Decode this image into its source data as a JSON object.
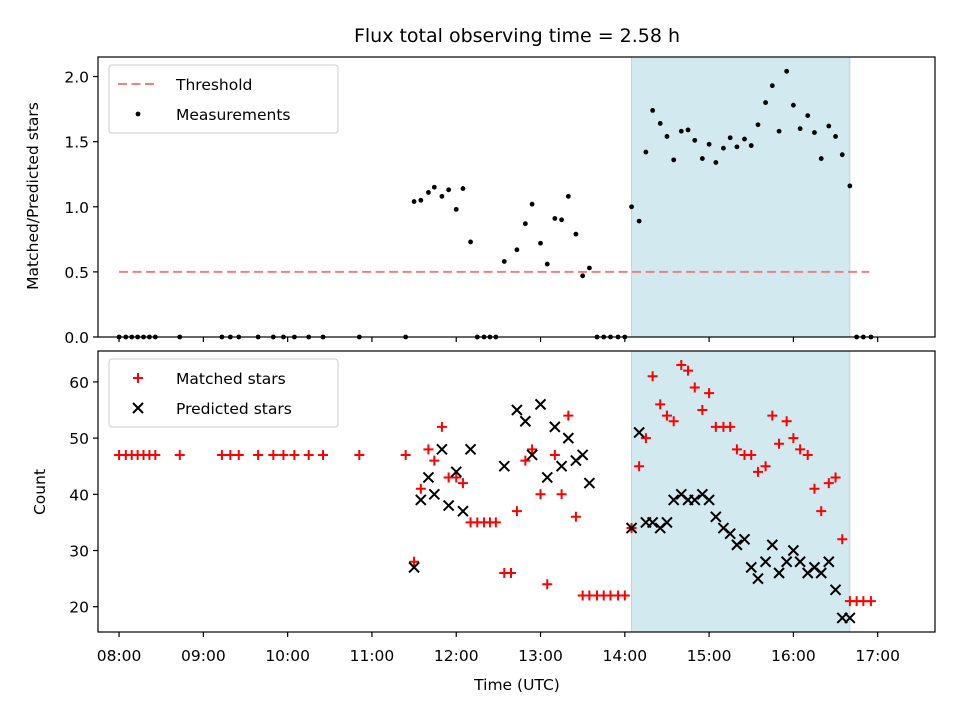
{
  "chart_data": [
    {
      "type": "scatter",
      "title": "Flux total observing time = 2.58 h",
      "xlabel": "",
      "ylabel": "Matched/Predicted stars",
      "xlim": [
        7.75,
        17.68
      ],
      "ylim": [
        0,
        2.15
      ],
      "yticks": [
        0.0,
        0.5,
        1.0,
        1.5,
        2.0
      ],
      "ytick_labels": [
        "0.0",
        "0.5",
        "1.0",
        "1.5",
        "2.0"
      ],
      "xticks": [
        8,
        9,
        10,
        11,
        12,
        13,
        14,
        15,
        16,
        17
      ],
      "shaded_region": {
        "x_start": 14.08,
        "x_end": 16.67,
        "color": "#a6d3e0"
      },
      "legend_position": "upper left",
      "threshold": {
        "name": "Threshold",
        "y": 0.5,
        "x_start": 8.0,
        "x_end": 16.9,
        "color": "#f08080"
      },
      "series": [
        {
          "name": "Measurements",
          "marker": "dot",
          "color": "#000000",
          "x": [
            8.0,
            8.08,
            8.15,
            8.22,
            8.29,
            8.36,
            8.43,
            8.72,
            9.22,
            9.32,
            9.42,
            9.65,
            9.83,
            9.95,
            10.08,
            10.25,
            10.42,
            10.85,
            11.4,
            11.5,
            11.58,
            11.67,
            11.74,
            11.83,
            11.91,
            12.0,
            12.08,
            12.17,
            12.25,
            12.33,
            12.4,
            12.47,
            12.57,
            12.72,
            12.82,
            12.9,
            13.0,
            13.08,
            13.17,
            13.25,
            13.33,
            13.42,
            13.5,
            13.58,
            13.67,
            13.75,
            13.83,
            13.92,
            14.0,
            14.08,
            14.17,
            14.25,
            14.33,
            14.42,
            14.5,
            14.58,
            14.67,
            14.75,
            14.83,
            14.92,
            15.0,
            15.08,
            15.17,
            15.25,
            15.33,
            15.42,
            15.5,
            15.58,
            15.67,
            15.75,
            15.83,
            15.92,
            16.0,
            16.08,
            16.17,
            16.25,
            16.33,
            16.42,
            16.5,
            16.58,
            16.67,
            16.75,
            16.83,
            16.92
          ],
          "y": [
            0,
            0,
            0,
            0,
            0,
            0,
            0,
            0,
            0,
            0,
            0,
            0,
            0,
            0,
            0,
            0,
            0,
            0,
            0,
            1.04,
            1.05,
            1.11,
            1.15,
            1.08,
            1.13,
            0.98,
            1.14,
            0.73,
            0,
            0,
            0,
            0,
            0.58,
            0.67,
            0.87,
            1.02,
            0.72,
            0.56,
            0.91,
            0.9,
            1.08,
            0.79,
            0.47,
            0.53,
            0,
            0,
            0,
            0,
            0,
            1.0,
            0.89,
            1.42,
            1.74,
            1.64,
            1.54,
            1.36,
            1.58,
            1.59,
            1.51,
            1.37,
            1.48,
            1.34,
            1.45,
            1.53,
            1.46,
            1.52,
            1.47,
            1.63,
            1.8,
            1.93,
            1.58,
            2.04,
            1.78,
            1.6,
            1.7,
            1.57,
            1.37,
            1.62,
            1.54,
            1.4,
            1.16,
            0,
            0,
            0
          ]
        }
      ]
    },
    {
      "type": "scatter",
      "xlabel": "Time (UTC)",
      "ylabel": "Count",
      "xlim": [
        7.75,
        17.68
      ],
      "ylim": [
        15.5,
        65.5
      ],
      "yticks": [
        20,
        30,
        40,
        50,
        60
      ],
      "ytick_labels": [
        "20",
        "30",
        "40",
        "50",
        "60"
      ],
      "xticks": [
        8,
        9,
        10,
        11,
        12,
        13,
        14,
        15,
        16,
        17
      ],
      "xtick_labels": [
        "08:00",
        "09:00",
        "10:00",
        "11:00",
        "12:00",
        "13:00",
        "14:00",
        "15:00",
        "16:00",
        "17:00"
      ],
      "shaded_region": {
        "x_start": 14.08,
        "x_end": 16.67,
        "color": "#a6d3e0"
      },
      "legend_position": "upper left",
      "series": [
        {
          "name": "Matched stars",
          "marker": "plus",
          "color": "#ff0000",
          "x": [
            8.0,
            8.08,
            8.15,
            8.22,
            8.29,
            8.36,
            8.43,
            8.72,
            9.22,
            9.32,
            9.42,
            9.65,
            9.83,
            9.95,
            10.08,
            10.25,
            10.42,
            10.85,
            11.4,
            11.5,
            11.58,
            11.67,
            11.74,
            11.83,
            11.91,
            12.0,
            12.08,
            12.17,
            12.25,
            12.33,
            12.4,
            12.47,
            12.57,
            12.65,
            12.72,
            12.82,
            12.9,
            13.0,
            13.08,
            13.17,
            13.25,
            13.33,
            13.42,
            13.5,
            13.58,
            13.67,
            13.75,
            13.83,
            13.92,
            14.0,
            14.08,
            14.17,
            14.25,
            14.33,
            14.42,
            14.5,
            14.58,
            14.67,
            14.75,
            14.83,
            14.92,
            15.0,
            15.08,
            15.17,
            15.25,
            15.33,
            15.42,
            15.5,
            15.58,
            15.67,
            15.75,
            15.83,
            15.92,
            16.0,
            16.08,
            16.17,
            16.25,
            16.33,
            16.42,
            16.5,
            16.58,
            16.67,
            16.75,
            16.83,
            16.92
          ],
          "y": [
            47,
            47,
            47,
            47,
            47,
            47,
            47,
            47,
            47,
            47,
            47,
            47,
            47,
            47,
            47,
            47,
            47,
            47,
            47,
            28,
            41,
            48,
            46,
            52,
            43,
            43,
            42,
            35,
            35,
            35,
            35,
            35,
            26,
            26,
            37,
            46,
            48,
            40,
            24,
            47,
            40,
            54,
            36,
            22,
            22,
            22,
            22,
            22,
            22,
            22,
            34,
            45,
            50,
            61,
            56,
            54,
            53,
            63,
            62,
            59,
            55,
            58,
            52,
            52,
            52,
            48,
            47,
            47,
            44,
            45,
            54,
            49,
            53,
            50,
            48,
            47,
            41,
            37,
            42,
            43,
            32,
            21,
            21,
            21,
            21
          ]
        },
        {
          "name": "Predicted stars",
          "marker": "x",
          "color": "#000000",
          "x": [
            11.5,
            11.58,
            11.67,
            11.74,
            11.83,
            11.91,
            12.0,
            12.08,
            12.17,
            12.57,
            12.72,
            12.82,
            12.9,
            13.0,
            13.08,
            13.17,
            13.25,
            13.33,
            13.42,
            13.5,
            13.58,
            14.08,
            14.17,
            14.25,
            14.33,
            14.42,
            14.5,
            14.58,
            14.67,
            14.75,
            14.83,
            14.92,
            15.0,
            15.08,
            15.17,
            15.25,
            15.33,
            15.42,
            15.5,
            15.58,
            15.67,
            15.75,
            15.83,
            15.92,
            16.0,
            16.08,
            16.17,
            16.25,
            16.33,
            16.42,
            16.5,
            16.58,
            16.67
          ],
          "y": [
            27,
            39,
            43,
            40,
            48,
            38,
            44,
            37,
            48,
            45,
            55,
            53,
            47,
            56,
            43,
            52,
            45,
            50,
            46,
            47,
            42,
            34,
            51,
            35,
            35,
            34,
            35,
            39,
            40,
            39,
            39,
            40,
            39,
            36,
            34,
            33,
            31,
            32,
            27,
            25,
            28,
            31,
            26,
            28,
            30,
            28,
            26,
            27,
            26,
            28,
            23,
            18,
            18
          ]
        }
      ]
    }
  ]
}
